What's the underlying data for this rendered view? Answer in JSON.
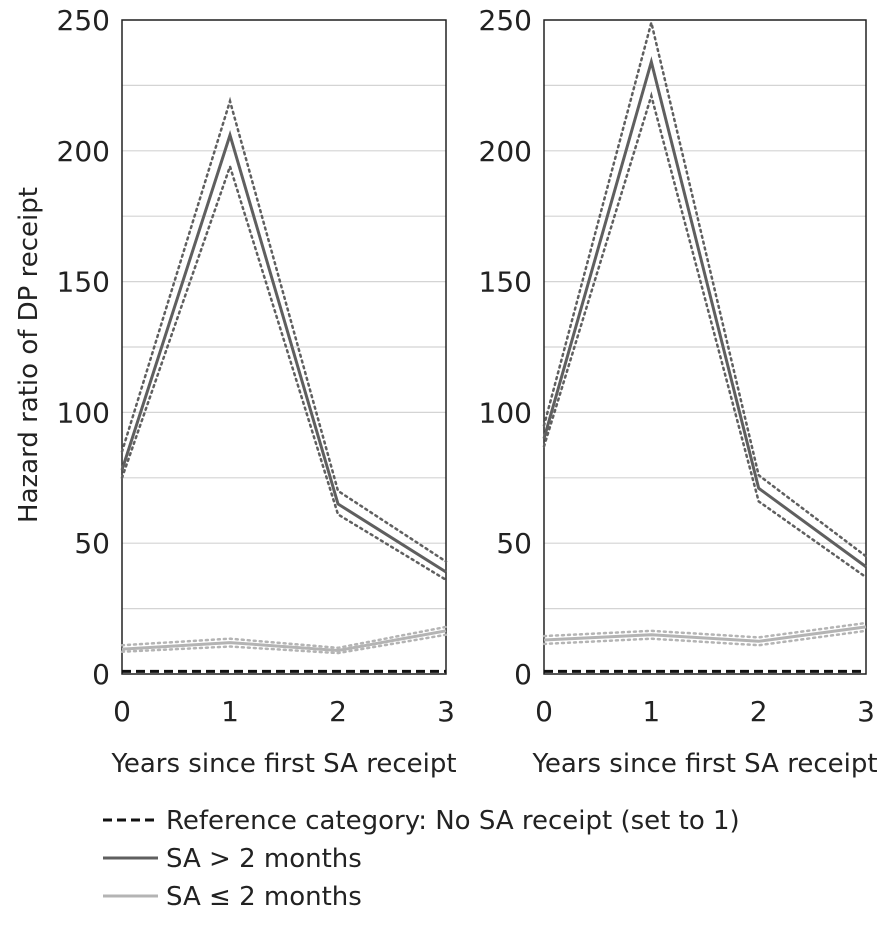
{
  "chart_data": [
    {
      "type": "line",
      "ylabel": "Hazard ratio of DP receipt",
      "xlabel": "Years since first SA receipt",
      "x": [
        0,
        1,
        2,
        3
      ],
      "ylim": [
        0,
        250
      ],
      "yticks": [
        0,
        50,
        100,
        150,
        200,
        250
      ],
      "grid_step": 25,
      "series": [
        {
          "name": "Reference category: No SA receipt (set to 1)",
          "style": "reference",
          "values": [
            1,
            1,
            1,
            1
          ]
        },
        {
          "name": "SA > 2 months",
          "style": "dark",
          "values": [
            78,
            206,
            65,
            39
          ],
          "ci_lower": [
            75,
            194,
            61,
            36
          ],
          "ci_upper": [
            85,
            219,
            70,
            43
          ]
        },
        {
          "name": "SA ≤ 2 months",
          "style": "light",
          "values": [
            9.5,
            12,
            9,
            16.5
          ],
          "ci_lower": [
            8.5,
            10.5,
            8,
            15
          ],
          "ci_upper": [
            11,
            13.5,
            10,
            18
          ]
        }
      ]
    },
    {
      "type": "line",
      "ylabel": "",
      "xlabel": "Years since first SA receipt",
      "x": [
        0,
        1,
        2,
        3
      ],
      "ylim": [
        0,
        250
      ],
      "yticks": [
        0,
        50,
        100,
        150,
        200,
        250
      ],
      "grid_step": 25,
      "series": [
        {
          "name": "Reference category: No SA receipt (set to 1)",
          "style": "reference",
          "values": [
            1,
            1,
            1,
            1
          ]
        },
        {
          "name": "SA > 2 months",
          "style": "dark",
          "values": [
            90,
            234,
            71,
            41
          ],
          "ci_lower": [
            87,
            221,
            66,
            37
          ],
          "ci_upper": [
            95,
            249,
            76,
            45
          ]
        },
        {
          "name": "SA ≤ 2 months",
          "style": "light",
          "values": [
            13,
            15,
            12.5,
            18
          ],
          "ci_lower": [
            11.5,
            13.5,
            11,
            16.5
          ],
          "ci_upper": [
            14.5,
            16.5,
            14,
            19.5
          ]
        }
      ]
    }
  ],
  "legend": [
    {
      "label": "Reference category: No SA receipt (set to 1)",
      "style": "reference"
    },
    {
      "label": "SA > 2 months",
      "style": "dark"
    },
    {
      "label": "SA ≤ 2 months",
      "style": "light"
    }
  ],
  "colors": {
    "dark": "#5f5f5f",
    "light": "#b4b4b4",
    "reference": "#111111",
    "grid": "#d4d4d4",
    "frame": "#222222"
  }
}
